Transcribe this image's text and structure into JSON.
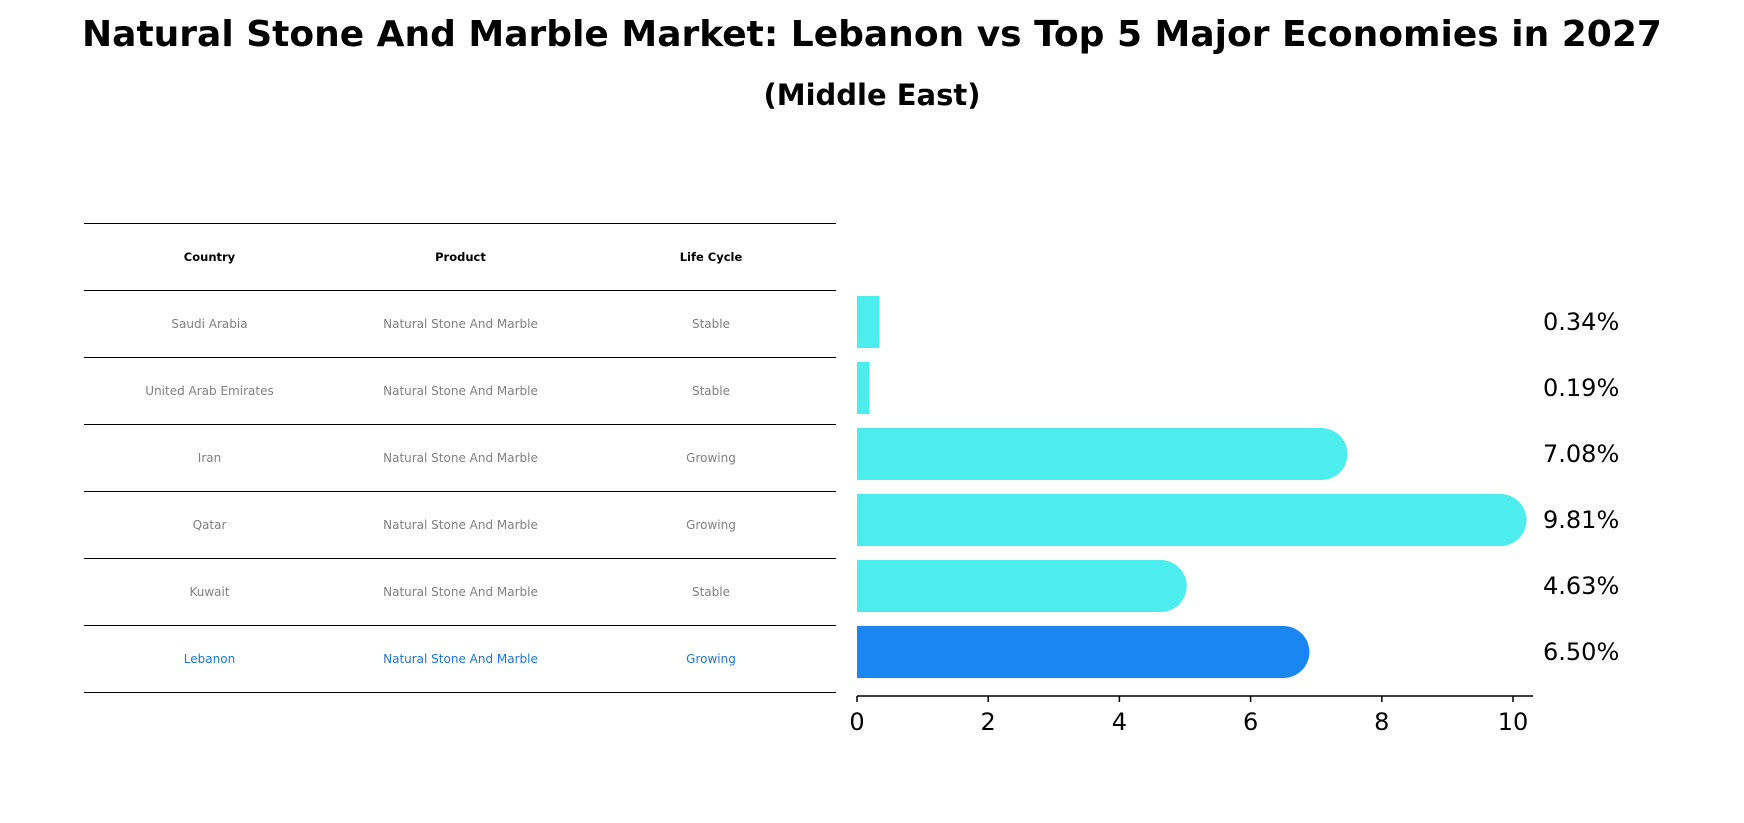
{
  "title": "Natural Stone And Marble Market: Lebanon vs Top 5 Major Economies in 2027",
  "subtitle": "(Middle East)",
  "table": {
    "headers": [
      "Country",
      "Product",
      "Life Cycle"
    ],
    "rows": [
      [
        "Saudi Arabia",
        "Natural Stone And Marble",
        "Stable"
      ],
      [
        "United Arab Emirates",
        "Natural Stone And Marble",
        "Stable"
      ],
      [
        "Iran",
        "Natural Stone And Marble",
        "Growing"
      ],
      [
        "Qatar",
        "Natural Stone And Marble",
        "Growing"
      ],
      [
        "Kuwait",
        "Natural Stone And Marble",
        "Stable"
      ],
      [
        "Lebanon",
        "Natural Stone And Marble",
        "Growing"
      ]
    ]
  },
  "chart_data": {
    "type": "bar",
    "orientation": "horizontal",
    "categories": [
      "Saudi Arabia",
      "United Arab Emirates",
      "Iran",
      "Qatar",
      "Kuwait",
      "Lebanon"
    ],
    "values": [
      0.34,
      0.19,
      7.08,
      9.81,
      4.63,
      6.5
    ],
    "value_labels": [
      "0.34%",
      "0.19%",
      "7.08%",
      "9.81%",
      "4.63%",
      "6.50%"
    ],
    "highlight": "Lebanon",
    "xlim": [
      0,
      10.3
    ],
    "xticks": [
      0,
      2,
      4,
      6,
      8,
      10
    ],
    "colors": {
      "default": "#4deced",
      "highlight": "#1a86f2"
    }
  }
}
